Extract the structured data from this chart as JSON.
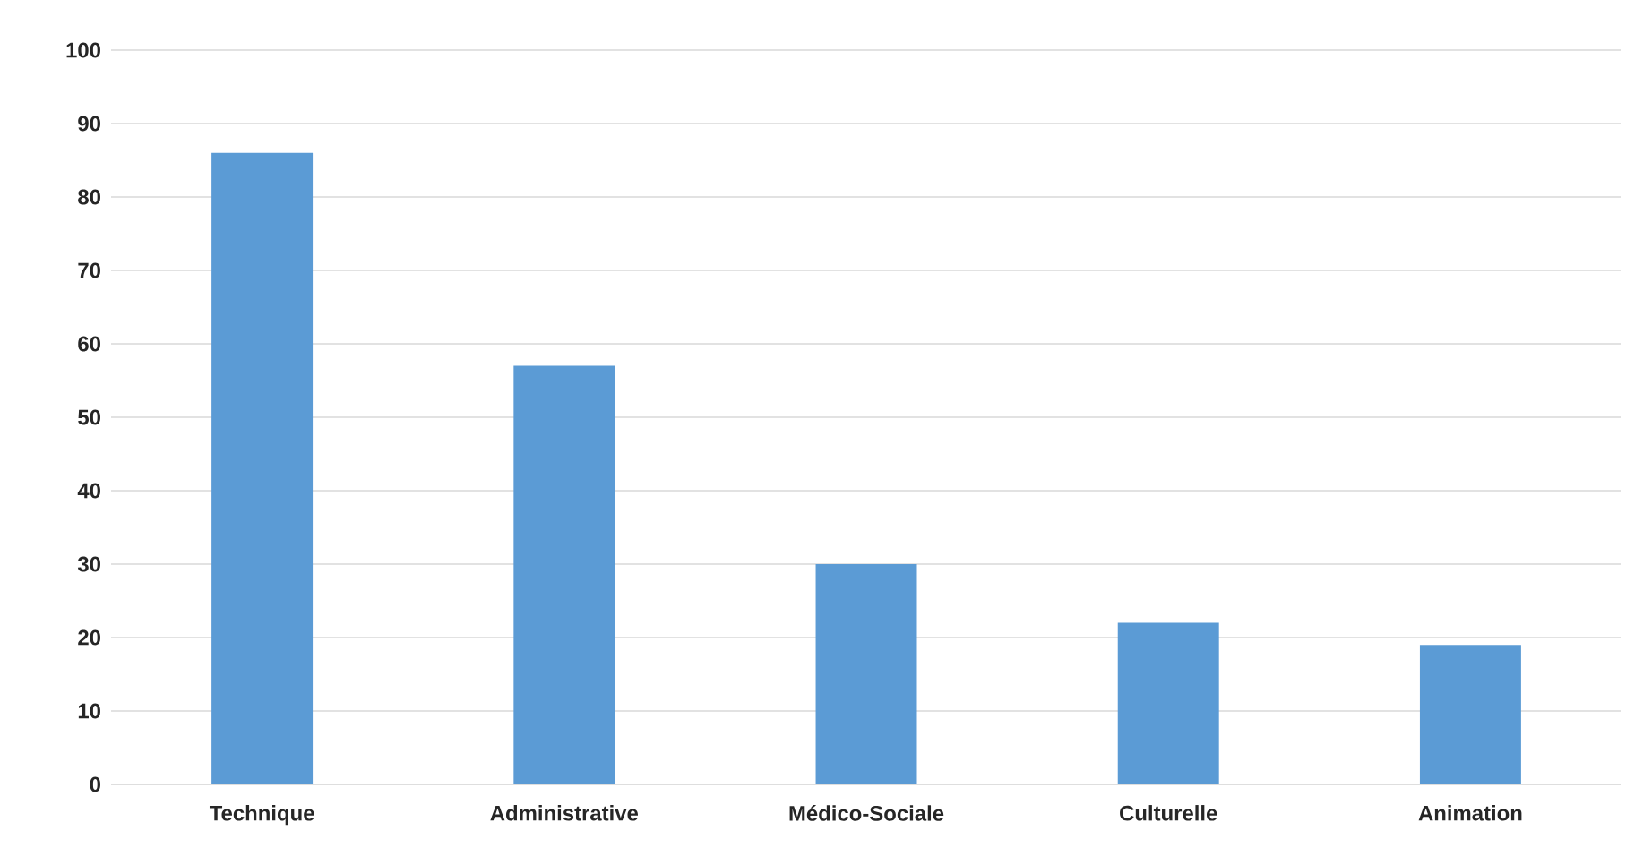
{
  "chart_data": {
    "type": "bar",
    "categories": [
      "Technique",
      "Administrative",
      "Médico-Sociale",
      "Culturelle",
      "Animation"
    ],
    "values": [
      86,
      57,
      30,
      22,
      19
    ],
    "color": "#5b9bd5",
    "ylim": [
      0,
      100
    ],
    "yticks": [
      0,
      10,
      20,
      30,
      40,
      50,
      60,
      70,
      80,
      90,
      100
    ],
    "grid": "y"
  }
}
